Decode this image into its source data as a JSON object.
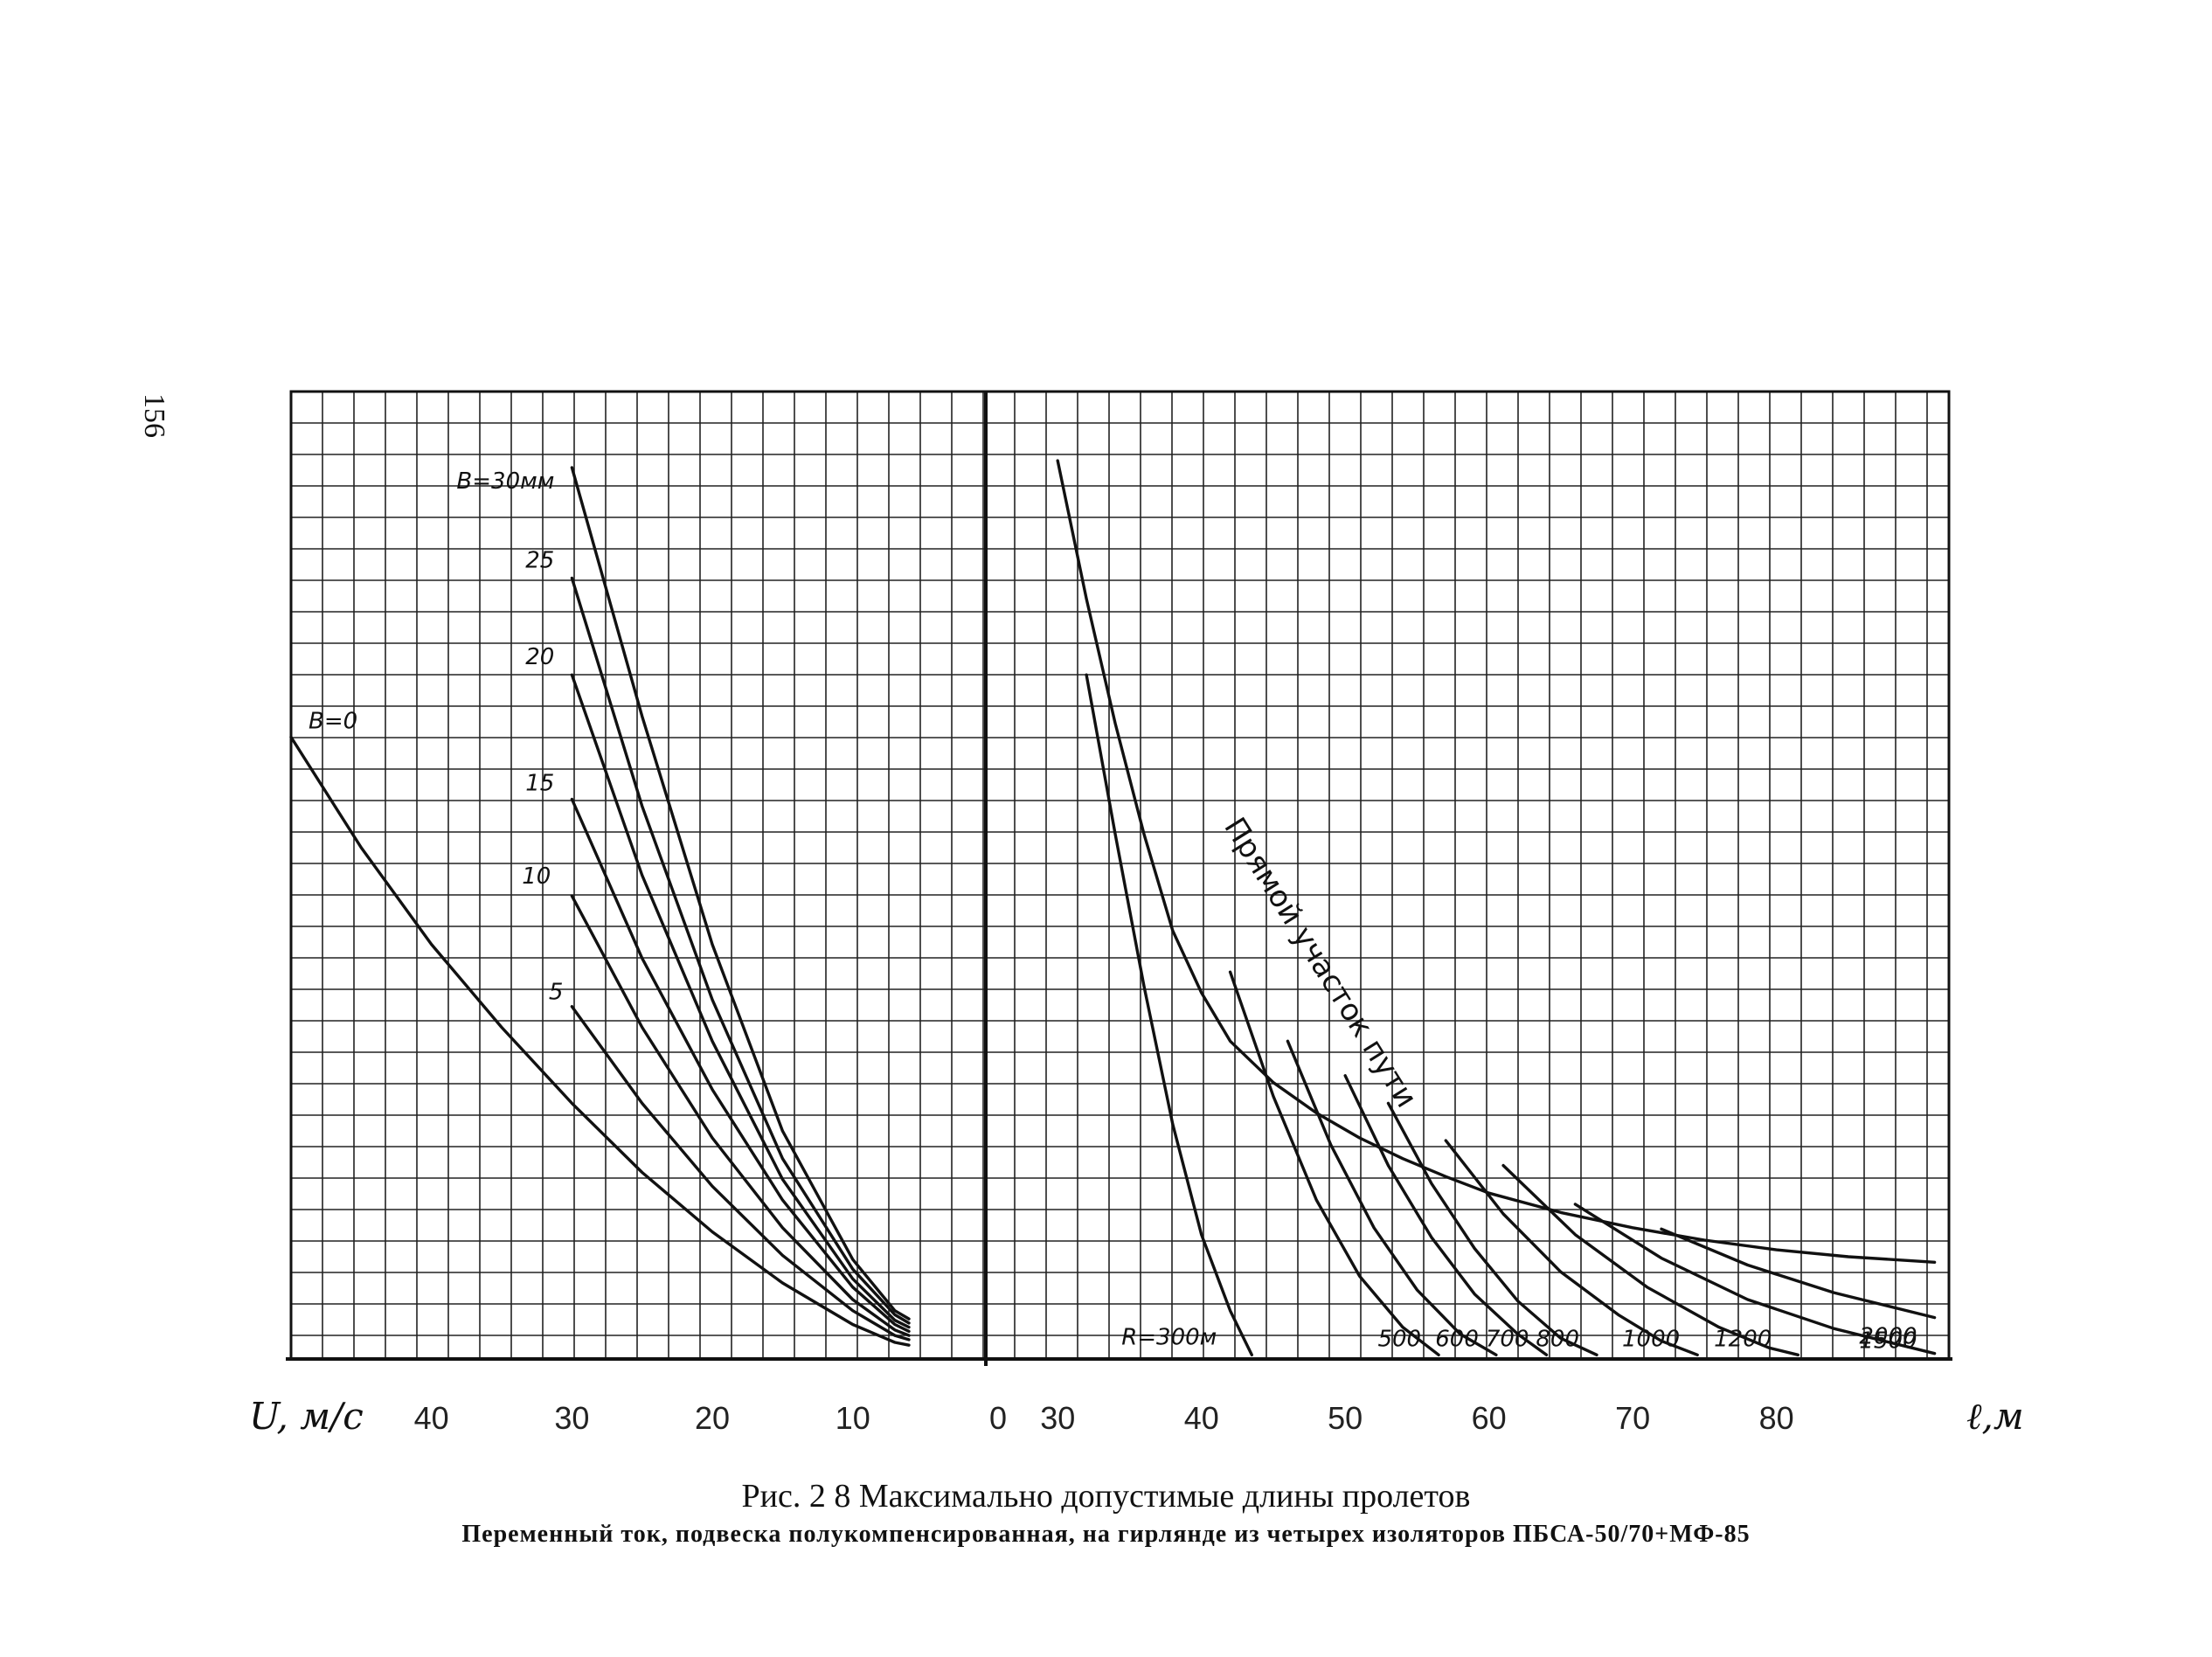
{
  "page_number": "156",
  "caption": {
    "title": "Рис. 2 8 Максимально допустимые длины пролетов",
    "subtitle": "Переменный ток, подвеска полукомпенсированная, на гирлянде из четырех изоляторов ПБСА-50/70+МФ-85"
  },
  "chart_data": [
    {
      "panel": "left",
      "type": "line",
      "xlabel": "U, м/с",
      "x_ticks": [
        "40",
        "30",
        "20",
        "10"
      ],
      "x_tick_values": [
        40,
        30,
        20,
        10
      ],
      "xlim": [
        50,
        6
      ],
      "ylim": [
        0,
        70
      ],
      "grid": true,
      "series": [
        {
          "name": "B=0",
          "points": [
            [
              50,
              45
            ],
            [
              45,
              37
            ],
            [
              40,
              30
            ],
            [
              35,
              24
            ],
            [
              30,
              18.5
            ],
            [
              25,
              13.5
            ],
            [
              20,
              9.2
            ],
            [
              15,
              5.5
            ],
            [
              10,
              2.5
            ],
            [
              7,
              1.2
            ],
            [
              6,
              1.0
            ]
          ]
        },
        {
          "name": "5",
          "points": [
            [
              30,
              25.5
            ],
            [
              25,
              18.5
            ],
            [
              20,
              12.5
            ],
            [
              15,
              7.5
            ],
            [
              10,
              3.5
            ],
            [
              7,
              1.7
            ],
            [
              6,
              1.4
            ]
          ]
        },
        {
          "name": "10",
          "points": [
            [
              30,
              33.5
            ],
            [
              25,
              24
            ],
            [
              20,
              16
            ],
            [
              15,
              9.5
            ],
            [
              10,
              4.3
            ],
            [
              7,
              2.1
            ],
            [
              6,
              1.7
            ]
          ]
        },
        {
          "name": "15",
          "points": [
            [
              30,
              40.5
            ],
            [
              25,
              29
            ],
            [
              20,
              19.5
            ],
            [
              15,
              11.5
            ],
            [
              10,
              5.2
            ],
            [
              7,
              2.5
            ],
            [
              6,
              2.0
            ]
          ]
        },
        {
          "name": "20",
          "points": [
            [
              30,
              49.5
            ],
            [
              25,
              35
            ],
            [
              20,
              23
            ],
            [
              15,
              13
            ],
            [
              10,
              5.8
            ],
            [
              7,
              2.8
            ],
            [
              6,
              2.3
            ]
          ]
        },
        {
          "name": "25",
          "points": [
            [
              30,
              56.5
            ],
            [
              25,
              40
            ],
            [
              20,
              26
            ],
            [
              15,
              14.5
            ],
            [
              10,
              6.5
            ],
            [
              7,
              3.2
            ],
            [
              6,
              2.6
            ]
          ]
        },
        {
          "name": "B=30мм",
          "points": [
            [
              30,
              64.5
            ],
            [
              25,
              46.5
            ],
            [
              20,
              30
            ],
            [
              15,
              16.5
            ],
            [
              10,
              7.2
            ],
            [
              7,
              3.5
            ],
            [
              6,
              2.9
            ]
          ]
        }
      ]
    },
    {
      "panel": "right",
      "type": "line",
      "xlabel": "ℓ,м",
      "x_ticks": [
        "0",
        "30",
        "40",
        "50",
        "60",
        "70",
        "80"
      ],
      "x_tick_values": [
        0,
        30,
        40,
        50,
        60,
        70,
        80
      ],
      "xlim": [
        25,
        92
      ],
      "ylim": [
        0,
        70
      ],
      "grid": true,
      "annotation": "Прямой участок пути",
      "series": [
        {
          "name": "Прямой участок пути",
          "points": [
            [
              30,
              65
            ],
            [
              32,
              55
            ],
            [
              34,
              46
            ],
            [
              36,
              38
            ],
            [
              38,
              31
            ],
            [
              40,
              26.5
            ],
            [
              42,
              23
            ],
            [
              45,
              20
            ],
            [
              48,
              17.8
            ],
            [
              51,
              16
            ],
            [
              54,
              14.5
            ],
            [
              57,
              13.2
            ],
            [
              60,
              12
            ],
            [
              65,
              10.6
            ],
            [
              70,
              9.5
            ],
            [
              75,
              8.6
            ],
            [
              80,
              7.9
            ],
            [
              85,
              7.4
            ],
            [
              91,
              7.0
            ]
          ]
        },
        {
          "name": "R=300м",
          "points": [
            [
              32,
              49.5
            ],
            [
              34,
              38
            ],
            [
              36,
              27
            ],
            [
              38,
              17
            ],
            [
              40,
              9
            ],
            [
              42,
              3.5
            ],
            [
              43.5,
              0.3
            ]
          ]
        },
        {
          "name": "500",
          "points": [
            [
              42,
              28
            ],
            [
              45,
              19
            ],
            [
              48,
              11.5
            ],
            [
              51,
              6
            ],
            [
              54,
              2.3
            ],
            [
              56.5,
              0.3
            ]
          ]
        },
        {
          "name": "600",
          "points": [
            [
              46,
              23
            ],
            [
              49,
              15.5
            ],
            [
              52,
              9.5
            ],
            [
              55,
              5
            ],
            [
              58,
              1.8
            ],
            [
              60.5,
              0.3
            ]
          ]
        },
        {
          "name": "700",
          "points": [
            [
              50,
              20.5
            ],
            [
              53,
              14
            ],
            [
              56,
              8.8
            ],
            [
              59,
              4.7
            ],
            [
              62,
              1.8
            ],
            [
              64,
              0.3
            ]
          ]
        },
        {
          "name": "800",
          "points": [
            [
              53,
              18.5
            ],
            [
              56,
              12.7
            ],
            [
              59,
              8
            ],
            [
              62,
              4.2
            ],
            [
              65,
              1.5
            ],
            [
              67.5,
              0.3
            ]
          ]
        },
        {
          "name": "1000",
          "points": [
            [
              57,
              15.8
            ],
            [
              61,
              10.5
            ],
            [
              65,
              6.3
            ],
            [
              69,
              3.2
            ],
            [
              72,
              1.3
            ],
            [
              74.5,
              0.3
            ]
          ]
        },
        {
          "name": "1200",
          "points": [
            [
              61,
              14
            ],
            [
              66,
              9
            ],
            [
              71,
              5.2
            ],
            [
              76,
              2.3
            ],
            [
              79.5,
              0.8
            ],
            [
              81.5,
              0.3
            ]
          ]
        },
        {
          "name": "1500",
          "points": [
            [
              66,
              11.2
            ],
            [
              72,
              7.3
            ],
            [
              78,
              4.3
            ],
            [
              84,
              2.2
            ],
            [
              91,
              0.4
            ]
          ]
        },
        {
          "name": "2000",
          "points": [
            [
              72,
              9.4
            ],
            [
              78,
              6.8
            ],
            [
              84,
              4.8
            ],
            [
              91,
              3.0
            ]
          ]
        }
      ]
    }
  ]
}
